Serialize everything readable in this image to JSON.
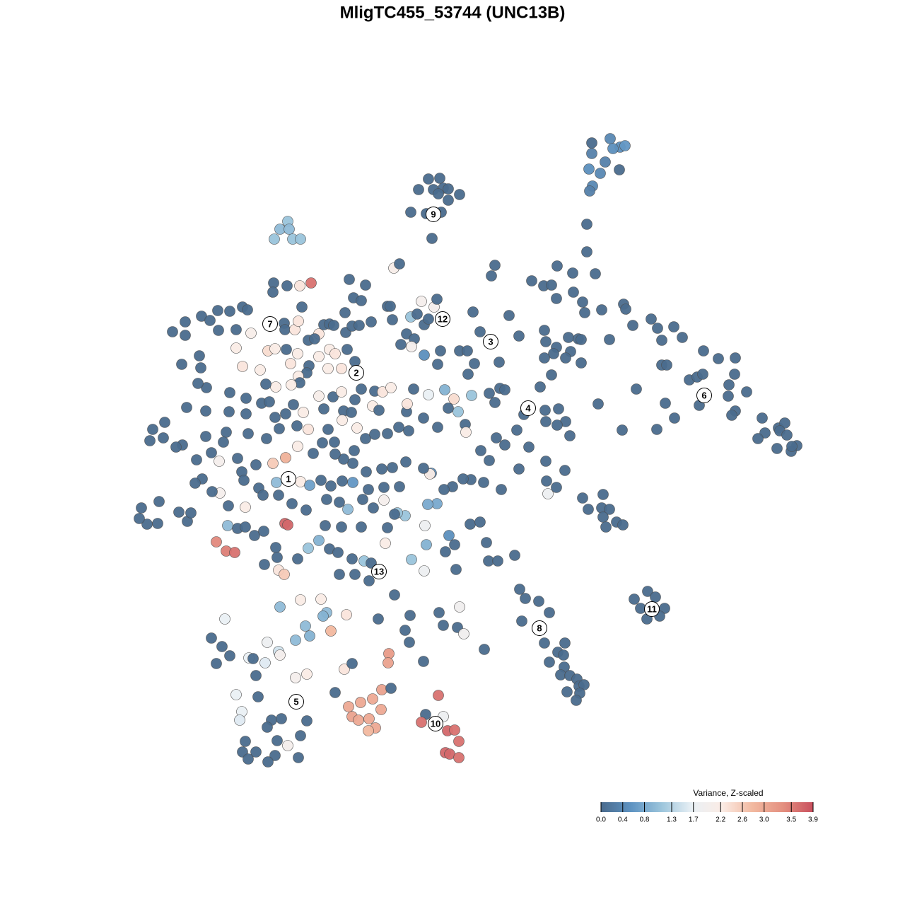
{
  "chart_data": {
    "type": "scatter",
    "title": "MligTC455_53744 (UNC13B)",
    "xlim": [
      180,
      1140
    ],
    "ylim": [
      1090,
      180
    ],
    "x": [
      837,
      863,
      877,
      884,
      867,
      837,
      856,
      833,
      849,
      876,
      838,
      834,
      830,
      830,
      606,
      622,
      613,
      627,
      592,
      620,
      634,
      650,
      634,
      581,
      603,
      624,
      611,
      407,
      396,
      409,
      388,
      414,
      425,
      244,
      262,
      262,
      285,
      297,
      308,
      325,
      309,
      334,
      343,
      350,
      355,
      387,
      386,
      406,
      424,
      440,
      427,
      402,
      403,
      417,
      422,
      451,
      458,
      466,
      472,
      489,
      498,
      508,
      488,
      500,
      511,
      494,
      517,
      557,
      565,
      548,
      552,
      525,
      581,
      590,
      596,
      614,
      618,
      600,
      606,
      575,
      586,
      582,
      567,
      555,
      334,
      343,
      368,
      379,
      389,
      405,
      421,
      411,
      436,
      445,
      466,
      474,
      491,
      502,
      483,
      464,
      451,
      437,
      434,
      422,
      424,
      412,
      390,
      376,
      348,
      325,
      292,
      280,
      284,
      257,
      282,
      264,
      291,
      324,
      348,
      370,
      381,
      389,
      404,
      415,
      429,
      436,
      420,
      395,
      377,
      351,
      320,
      316,
      291,
      299,
      278,
      258,
      249,
      233,
      216,
      212,
      231,
      451,
      458,
      471,
      483,
      486,
      497,
      502,
      511,
      530,
      541,
      553,
      527,
      536,
      505,
      484,
      464,
      473,
      456,
      443,
      421,
      404,
      386,
      362,
      342,
      310,
      336,
      345,
      366,
      391,
      425,
      438,
      454,
      468,
      484,
      499,
      521,
      543,
      565,
      574,
      555,
      540,
      518,
      499,
      486,
      474,
      501,
      517,
      530,
      548,
      564,
      578,
      575,
      576,
      585,
      606,
      629,
      642,
      667,
      648,
      634,
      619,
      599,
      658,
      659,
      680,
      692,
      714,
      702,
      731,
      748,
      734,
      709,
      684,
      666,
      655,
      640,
      628,
      610,
      608,
      599,
      618,
      605,
      573,
      562,
      543,
      528,
      513,
      492,
      480,
      462,
      433,
      413,
      394,
      372,
      347,
      323,
      311,
      300,
      286,
      276,
      253,
      223,
      208,
      197,
      200,
      225,
      265,
      270,
      322,
      336,
      347,
      360,
      373,
      403,
      407,
      306,
      320,
      332,
      390,
      392,
      374,
      394,
      402,
      421,
      436,
      451,
      466,
      478,
      498,
      515,
      525,
      522,
      502,
      480,
      460,
      483,
      511,
      545,
      548,
      558,
      601,
      603,
      635,
      643,
      630,
      582,
      600,
      645,
      665,
      679,
      688,
      691,
      704,
      728,
      700,
      695,
      752,
      769,
      780,
      788,
      810,
      842,
      787,
      811,
      824,
      827,
      851,
      882,
      885,
      895,
      921,
      930,
      953,
      965,
      936,
      936,
      943,
      720,
      669,
      679,
      734,
      770,
      772,
      804,
      818,
      822,
      862,
      787,
      783,
      807,
      770,
      800,
      822,
      780,
      764,
      706,
      671,
      662,
      650,
      661,
      623,
      619,
      600,
      692,
      707,
      714,
      700,
      741,
      771,
      772,
      790,
      800,
      806,
      788,
      846,
      880,
      900,
      929,
      941,
      954,
      975,
      986,
      995,
      994,
      1016,
      1040,
      1039,
      1031,
      989,
      1030,
      1040,
      1035,
      1056,
      1078,
      1082,
      1072,
      1101,
      1110,
      1103,
      1113,
      1127,
      1119,
      1099,
      1120,
      772,
      775,
      773,
      787,
      799,
      824,
      832,
      853,
      851,
      862,
      853,
      857,
      872,
      881,
      735,
      743,
      762,
      777,
      738,
      770,
      777,
      789,
      797,
      799,
      798,
      793,
      806,
      816,
      819,
      826,
      802,
      820,
      815,
      916,
      927,
      897,
      906,
      940,
      915,
      933,
      396,
      425,
      454,
      462,
      457,
      490,
      468,
      432,
      438,
      418,
      318,
      299,
      314,
      325,
      306,
      352,
      358,
      375,
      378,
      394,
      396,
      418,
      434,
      362,
      334,
      342,
      339,
      365,
      384,
      398,
      378,
      392,
      425,
      407,
      434,
      389,
      379,
      362,
      343,
      347,
      351,
      422,
      487,
      498,
      474,
      493,
      510,
      527,
      540,
      539,
      553,
      550,
      549,
      498,
      507,
      522,
      531,
      521,
      535,
      580,
      573,
      579,
      599,
      621,
      627,
      650,
      647,
      656,
      685,
      620,
      602,
      596,
      627,
      633,
      643,
      649,
      630,
      636,
      649,
      558
    ],
    "y": [
      202,
      196,
      208,
      206,
      210,
      217,
      229,
      239,
      245,
      240,
      263,
      270,
      317,
      356,
      253,
      252,
      268,
      266,
      268,
      274,
      267,
      275,
      283,
      300,
      302,
      300,
      337,
      313,
      324,
      324,
      338,
      338,
      338,
      469,
      455,
      474,
      447,
      453,
      439,
      440,
      467,
      466,
      434,
      438,
      471,
      400,
      413,
      404,
      404,
      400,
      434,
      457,
      466,
      466,
      454,
      472,
      459,
      458,
      460,
      470,
      461,
      460,
      442,
      421,
      425,
      395,
      403,
      379,
      373,
      433,
      433,
      455,
      448,
      444,
      426,
      434,
      423,
      459,
      451,
      472,
      479,
      490,
      487,
      452,
      492,
      518,
      523,
      496,
      493,
      494,
      500,
      514,
      481,
      479,
      494,
      500,
      494,
      511,
      521,
      521,
      504,
      517,
      527,
      532,
      541,
      544,
      547,
      543,
      563,
      555,
      548,
      542,
      520,
      515,
      503,
      576,
      581,
      582,
      585,
      570,
      568,
      590,
      585,
      572,
      583,
      607,
      602,
      606,
      620,
      613,
      611,
      625,
      617,
      640,
      650,
      629,
      632,
      597,
      607,
      623,
      619,
      560,
      578,
      561,
      554,
      581,
      583,
      565,
      550,
      553,
      554,
      548,
      574,
      580,
      605,
      594,
      607,
      625,
      626,
      641,
      631,
      647,
      655,
      657,
      667,
      652,
      648,
      679,
      690,
      682,
      681,
      686,
      679,
      687,
      680,
      682,
      692,
      689,
      688,
      653,
      661,
      663,
      667,
      655,
      649,
      642,
      637,
      620,
      614,
      613,
      604,
      609,
      582,
      571,
      550,
      558,
      551,
      564,
      559,
      582,
      577,
      604,
      591,
      600,
      611,
      637,
      651,
      629,
      619,
      608,
      632,
      663,
      692,
      682,
      678,
      677,
      688,
      692,
      669,
      670,
      662,
      712,
      713,
      729,
      725,
      707,
      718,
      706,
      720,
      710,
      706,
      721,
      712,
      700,
      700,
      717,
      715,
      697,
      695,
      677,
      683,
      724,
      740,
      741,
      733,
      718,
      709,
      737,
      725,
      743,
      747,
      745,
      757,
      751,
      740,
      742,
      766,
      779,
      781,
      774,
      788,
      798,
      806,
      812,
      790,
      775,
      764,
      776,
      781,
      790,
      793,
      796,
      821,
      812,
      812,
      743,
      745,
      745,
      768,
      746,
      727,
      743,
      770,
      757,
      770,
      780,
      791,
      807,
      805,
      741,
      738,
      767,
      793,
      793,
      785,
      375,
      390,
      397,
      404,
      403,
      376,
      386,
      387,
      422,
      413,
      427,
      442,
      438,
      430,
      437,
      460,
      451,
      464,
      462,
      477,
      481,
      516,
      516,
      446,
      441,
      469,
      475,
      467,
      483,
      477,
      479,
      480,
      480,
      491,
      500,
      497,
      506,
      506,
      513,
      530,
      547,
      512,
      514,
      529,
      496,
      496,
      496,
      515,
      502,
      556,
      549,
      551,
      569,
      586,
      580,
      596,
      578,
      596,
      616,
      601,
      571,
      608,
      550,
      607,
      570,
      591,
      537,
      533,
      496,
      529,
      507,
      506,
      529,
      544,
      573,
      560,
      581,
      587,
      554,
      591,
      612,
      620,
      605,
      598,
      609,
      615,
      630,
      638,
      634,
      631,
      652,
      698,
      680,
      689,
      665,
      704,
      720,
      699,
      718,
      720,
      731,
      745,
      738,
      742,
      833,
      846,
      850,
      866,
      878,
      909,
      936,
      922,
      926,
      909,
      943,
      954,
      955,
      960,
      970,
      968,
      978,
      980,
      990,
      836,
      844,
      847,
      860,
      860,
      875,
      871,
      858,
      848,
      847,
      866,
      871,
      869,
      892,
      885,
      899,
      905,
      875,
      902,
      914,
      927,
      938,
      930,
      931,
      937,
      908,
      921,
      926,
      958,
      953,
      955,
      982,
      1006,
      1018,
      985,
      1018,
      1016,
      1028,
      1047,
      1040,
      1054,
      1019,
      1068,
      1077,
      1063,
      1063,
      1048,
      1073,
      1071,
      946,
      938,
      979,
      999,
      993,
      988,
      975,
      1003,
      973,
      924,
      937,
      1013,
      1018,
      1016,
      1029,
      1033,
      875,
      870,
      891,
      908,
      935,
      866,
      884,
      858,
      887,
      896,
      918,
      983,
      1010,
      1021,
      1013,
      1033,
      1032,
      1048,
      1064,
      1066,
      1071,
      841
    ],
    "values": [
      0,
      0.4,
      0.5,
      0.6,
      0.5,
      0.3,
      0.3,
      0.5,
      0.4,
      0,
      0.4,
      0.3,
      0,
      0,
      0,
      0,
      0,
      0,
      0,
      0,
      0,
      0,
      0,
      0,
      0,
      0,
      0,
      1.1,
      1.0,
      1.0,
      1.1,
      1.1,
      1.1,
      0,
      0,
      0,
      0,
      0,
      0,
      0,
      0,
      0,
      0,
      0,
      2.1,
      0,
      0,
      0,
      2.3,
      3.6,
      0,
      0,
      0,
      2.3,
      2.3,
      2.3,
      0,
      0,
      0,
      0,
      0,
      0,
      0,
      0,
      0,
      0,
      0,
      2.1,
      0,
      0,
      0,
      0,
      1.1,
      0,
      2.0,
      2.0,
      0,
      0,
      0,
      0,
      0,
      2.0,
      0,
      0,
      2.2,
      2.3,
      2.2,
      2.4,
      2.2,
      0,
      2.2,
      2.3,
      0,
      0,
      2.2,
      2.3,
      0,
      0,
      2.3,
      2.2,
      2.2,
      0,
      0,
      2.2,
      0,
      2.2,
      2.2,
      0,
      0,
      0,
      0,
      0,
      0,
      0,
      0,
      0,
      0,
      0,
      0,
      0,
      0,
      0,
      0,
      0,
      2.2,
      2.3,
      0,
      0,
      0,
      0,
      0,
      0,
      0,
      0,
      0,
      0,
      0,
      0,
      0,
      0,
      0,
      2.1,
      0,
      0,
      2.2,
      0,
      0,
      0,
      0,
      0,
      2.3,
      2.2,
      2.2,
      0,
      2.2,
      2.2,
      0,
      0,
      0,
      0,
      2.2,
      2.9,
      2.6,
      0,
      0,
      2.0,
      0,
      0,
      0,
      1.0,
      2.2,
      0.7,
      0,
      0,
      0,
      0.6,
      0,
      0,
      0,
      0,
      0,
      0,
      0,
      0,
      0,
      0,
      0,
      0,
      0,
      0,
      0,
      0,
      0,
      2.3,
      0,
      1.7,
      0.9,
      2.4,
      1.1,
      1.1,
      0,
      0,
      0,
      0,
      2.2,
      0,
      0,
      0,
      0,
      0,
      0,
      0,
      0,
      0,
      0,
      0,
      0,
      0,
      0.6,
      2.2,
      0,
      0.8,
      0.8,
      1.1,
      1.1,
      2.0,
      0,
      0,
      1.0,
      0,
      0,
      0,
      0,
      0,
      0,
      2.2,
      0,
      2.0,
      0,
      0,
      0,
      0,
      0,
      0,
      0,
      0,
      0,
      0,
      0,
      1.0,
      0,
      0,
      0,
      0,
      3.7,
      3.7,
      3.4,
      3.5,
      3.6,
      0,
      0,
      0,
      2.3,
      2.6,
      0,
      1.1,
      0.9,
      0,
      0,
      0,
      1.1,
      0,
      0,
      0,
      0,
      0,
      0,
      0,
      2.2,
      0,
      0,
      1.8,
      0.9,
      0.5,
      0,
      0,
      1.1,
      1.8,
      0,
      0,
      0,
      0,
      0,
      0,
      0,
      0,
      0,
      0,
      0,
      0,
      0,
      0,
      0,
      0,
      0,
      0,
      0,
      0,
      0,
      0,
      0,
      0,
      0,
      0,
      0,
      0,
      0,
      0,
      0,
      0,
      0,
      0,
      0,
      0,
      0,
      0,
      0,
      0,
      0,
      0,
      0,
      0,
      0,
      0,
      0,
      0,
      0,
      0,
      0,
      0,
      0,
      0,
      0,
      0.5,
      0,
      0,
      0,
      0,
      0,
      0,
      0,
      0,
      0,
      0,
      0,
      0,
      0,
      0,
      0,
      0,
      0,
      0,
      0,
      0,
      0,
      0,
      0,
      0,
      0,
      0,
      0,
      0,
      0,
      0,
      0,
      0,
      0,
      0,
      0,
      0,
      0,
      0,
      0,
      0,
      0,
      0,
      1.8,
      0,
      0,
      0,
      0,
      0,
      0,
      0,
      0,
      0,
      0,
      0,
      0,
      0,
      0,
      0,
      0,
      0,
      0,
      0,
      0,
      0,
      0,
      0,
      0,
      0,
      0,
      0,
      0,
      0,
      0,
      0,
      0,
      0,
      0,
      0,
      0,
      0,
      0,
      1.0,
      2.2,
      2.2,
      1.0,
      0.9,
      2.3,
      2.8,
      1.0,
      0.9,
      1.0,
      1.7,
      0,
      0,
      0,
      0,
      1.7,
      0,
      1.6,
      1.8,
      1.5,
      2.0,
      2.0,
      2.2,
      0,
      1.7,
      1.7,
      1.6,
      0,
      0,
      0,
      0,
      0,
      0,
      2.0,
      0,
      0,
      0,
      0,
      0,
      0,
      0,
      0,
      2.3,
      0,
      0,
      3.0,
      3.0,
      3.0,
      3.1,
      3.0,
      0,
      3.2,
      3.1,
      3.1,
      3.0,
      3.0,
      3.0,
      2.8,
      0,
      0,
      0,
      0,
      0,
      0,
      0,
      1.9,
      0,
      1.9,
      0,
      3.6,
      0,
      3.6,
      1.8,
      3.7,
      3.6,
      3.6,
      3.7,
      3.7,
      3.6,
      0
    ],
    "cluster_labels": [
      {
        "label": "1",
        "x": 408,
        "y": 677
      },
      {
        "label": "2",
        "x": 504,
        "y": 527
      },
      {
        "label": "3",
        "x": 694,
        "y": 483
      },
      {
        "label": "4",
        "x": 747,
        "y": 577
      },
      {
        "label": "5",
        "x": 419,
        "y": 992
      },
      {
        "label": "6",
        "x": 996,
        "y": 559
      },
      {
        "label": "7",
        "x": 382,
        "y": 458
      },
      {
        "label": "8",
        "x": 763,
        "y": 888
      },
      {
        "label": "9",
        "x": 613,
        "y": 303
      },
      {
        "label": "10",
        "x": 616,
        "y": 1023
      },
      {
        "label": "11",
        "x": 922,
        "y": 861
      },
      {
        "label": "12",
        "x": 626,
        "y": 451
      },
      {
        "label": "13",
        "x": 536,
        "y": 808
      }
    ],
    "colorbar_title": "Variance, Z-scaled",
    "clim": [
      0,
      3.9
    ],
    "cticks": [
      {
        "value": 0,
        "label": "0.0"
      },
      0.4,
      0.8,
      1.3,
      1.7,
      2.2,
      2.6,
      {
        "value": 3,
        "label": "3.0"
      },
      3.5,
      3.9
    ],
    "colormap": [
      "#4a6b8d",
      "#5e93c2",
      "#9cc5dc",
      "#e9f0f5",
      "#fbece5",
      "#f2b9a0",
      "#e49080",
      "#c9505e"
    ]
  }
}
